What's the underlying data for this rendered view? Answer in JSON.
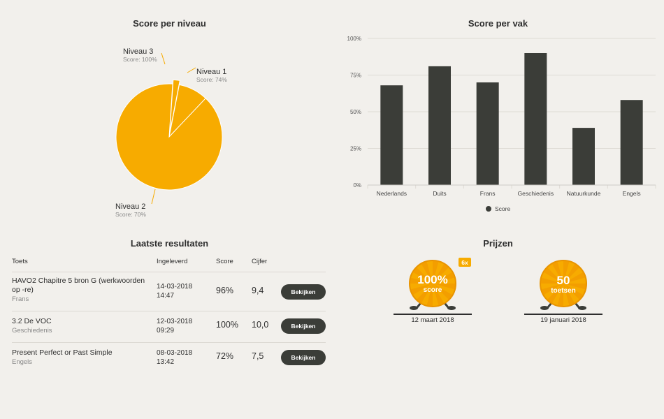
{
  "pie": {
    "title": "Score per niveau",
    "slices": [
      {
        "name": "Niveau 1",
        "score_label": "Score: 74%",
        "value": 9
      },
      {
        "name": "Niveau 2",
        "score_label": "Score: 70%",
        "value": 89
      },
      {
        "name": "Niveau 3",
        "score_label": "Score: 100%",
        "value": 2
      }
    ]
  },
  "chart_data": {
    "type": "bar",
    "title": "Score per vak",
    "categories": [
      "Nederlands",
      "Duits",
      "Frans",
      "Geschiedenis",
      "Natuurkunde",
      "Engels"
    ],
    "series": [
      {
        "name": "Score",
        "values": [
          68,
          81,
          70,
          90,
          39,
          58
        ]
      }
    ],
    "yticks": [
      "0%",
      "25%",
      "50%",
      "75%",
      "100%"
    ],
    "ylim": [
      0,
      100
    ],
    "legend": "bottom",
    "colors": {
      "bar": "#3b3d38",
      "pie": "#f7ab00"
    }
  },
  "results": {
    "title": "Laatste resultaten",
    "headers": {
      "toets": "Toets",
      "ingeleverd": "Ingeleverd",
      "score": "Score",
      "cijfer": "Cijfer"
    },
    "rows": [
      {
        "title": "HAVO2 Chapitre 5 bron G (werkwoorden op -re)",
        "subject": "Frans",
        "date": "14-03-2018",
        "time": "14:47",
        "score": "96%",
        "grade": "9,4",
        "button": "Bekijken"
      },
      {
        "title": "3.2 De VOC",
        "subject": "Geschiedenis",
        "date": "12-03-2018",
        "time": "09:29",
        "score": "100%",
        "grade": "10,0",
        "button": "Bekijken"
      },
      {
        "title": "Present Perfect or Past Simple",
        "subject": "Engels",
        "date": "08-03-2018",
        "time": "13:42",
        "score": "72%",
        "grade": "7,5",
        "button": "Bekijken"
      }
    ]
  },
  "prizes": {
    "title": "Prijzen",
    "items": [
      {
        "line1": "100%",
        "line2": "score",
        "badge": "6x",
        "date": "12 maart 2018",
        "icon": "medal-icon"
      },
      {
        "line1": "50",
        "line2": "toetsen",
        "badge": "",
        "date": "19 januari 2018",
        "icon": "medal-icon"
      }
    ]
  }
}
